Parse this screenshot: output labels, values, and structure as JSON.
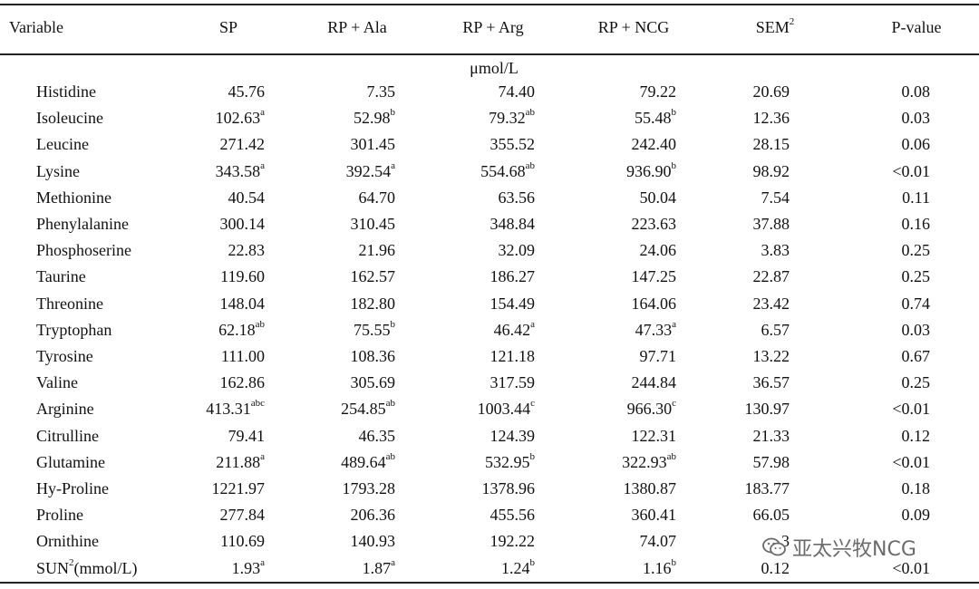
{
  "table": {
    "headers": {
      "variable": "Variable",
      "sp": "SP",
      "ala": "RP + Ala",
      "arg": "RP + Arg",
      "ncg": "RP + NCG",
      "sem": "SEM",
      "sem_sup": "2",
      "p": "P-value"
    },
    "unit": "μmol/L",
    "rows": [
      {
        "name": "Histidine",
        "sp": "45.76",
        "sp_s": "",
        "ala": "7.35",
        "ala_s": "",
        "arg": "74.40",
        "arg_s": "",
        "ncg": "79.22",
        "ncg_s": "",
        "sem": "20.69",
        "p": "0.08"
      },
      {
        "name": "Isoleucine",
        "sp": "102.63",
        "sp_s": "a",
        "ala": "52.98",
        "ala_s": "b",
        "arg": "79.32",
        "arg_s": "ab",
        "ncg": "55.48",
        "ncg_s": "b",
        "sem": "12.36",
        "p": "0.03"
      },
      {
        "name": "Leucine",
        "sp": "271.42",
        "sp_s": "",
        "ala": "301.45",
        "ala_s": "",
        "arg": "355.52",
        "arg_s": "",
        "ncg": "242.40",
        "ncg_s": "",
        "sem": "28.15",
        "p": "0.06"
      },
      {
        "name": "Lysine",
        "sp": "343.58",
        "sp_s": "a",
        "ala": "392.54",
        "ala_s": "a",
        "arg": "554.68",
        "arg_s": "ab",
        "ncg": "936.90",
        "ncg_s": "b",
        "sem": "98.92",
        "p": "<0.01"
      },
      {
        "name": "Methionine",
        "sp": "40.54",
        "sp_s": "",
        "ala": "64.70",
        "ala_s": "",
        "arg": "63.56",
        "arg_s": "",
        "ncg": "50.04",
        "ncg_s": "",
        "sem": "7.54",
        "p": "0.11"
      },
      {
        "name": "Phenylalanine",
        "sp": "300.14",
        "sp_s": "",
        "ala": "310.45",
        "ala_s": "",
        "arg": "348.84",
        "arg_s": "",
        "ncg": "223.63",
        "ncg_s": "",
        "sem": "37.88",
        "p": "0.16"
      },
      {
        "name": "Phosphoserine",
        "sp": "22.83",
        "sp_s": "",
        "ala": "21.96",
        "ala_s": "",
        "arg": "32.09",
        "arg_s": "",
        "ncg": "24.06",
        "ncg_s": "",
        "sem": "3.83",
        "p": "0.25"
      },
      {
        "name": "Taurine",
        "sp": "119.60",
        "sp_s": "",
        "ala": "162.57",
        "ala_s": "",
        "arg": "186.27",
        "arg_s": "",
        "ncg": "147.25",
        "ncg_s": "",
        "sem": "22.87",
        "p": "0.25"
      },
      {
        "name": "Threonine",
        "sp": "148.04",
        "sp_s": "",
        "ala": "182.80",
        "ala_s": "",
        "arg": "154.49",
        "arg_s": "",
        "ncg": "164.06",
        "ncg_s": "",
        "sem": "23.42",
        "p": "0.74"
      },
      {
        "name": "Tryptophan",
        "sp": "62.18",
        "sp_s": "ab",
        "ala": "75.55",
        "ala_s": "b",
        "arg": "46.42",
        "arg_s": "a",
        "ncg": "47.33",
        "ncg_s": "a",
        "sem": "6.57",
        "p": "0.03"
      },
      {
        "name": "Tyrosine",
        "sp": "111.00",
        "sp_s": "",
        "ala": "108.36",
        "ala_s": "",
        "arg": "121.18",
        "arg_s": "",
        "ncg": "97.71",
        "ncg_s": "",
        "sem": "13.22",
        "p": "0.67"
      },
      {
        "name": "Valine",
        "sp": "162.86",
        "sp_s": "",
        "ala": "305.69",
        "ala_s": "",
        "arg": "317.59",
        "arg_s": "",
        "ncg": "244.84",
        "ncg_s": "",
        "sem": "36.57",
        "p": "0.25"
      },
      {
        "name": "Arginine",
        "sp": "413.31",
        "sp_s": "abc",
        "ala": "254.85",
        "ala_s": "ab",
        "arg": "1003.44",
        "arg_s": "c",
        "ncg": "966.30",
        "ncg_s": "c",
        "sem": "130.97",
        "p": "<0.01"
      },
      {
        "name": "Citrulline",
        "sp": "79.41",
        "sp_s": "",
        "ala": "46.35",
        "ala_s": "",
        "arg": "124.39",
        "arg_s": "",
        "ncg": "122.31",
        "ncg_s": "",
        "sem": "21.33",
        "p": "0.12"
      },
      {
        "name": "Glutamine",
        "sp": "211.88",
        "sp_s": "a",
        "ala": "489.64",
        "ala_s": "ab",
        "arg": "532.95",
        "arg_s": "b",
        "ncg": "322.93",
        "ncg_s": "ab",
        "sem": "57.98",
        "p": "<0.01"
      },
      {
        "name": "Hy-Proline",
        "sp": "1221.97",
        "sp_s": "",
        "ala": "1793.28",
        "ala_s": "",
        "arg": "1378.96",
        "arg_s": "",
        "ncg": "1380.87",
        "ncg_s": "",
        "sem": "183.77",
        "p": "0.18"
      },
      {
        "name": "Proline",
        "sp": "277.84",
        "sp_s": "",
        "ala": "206.36",
        "ala_s": "",
        "arg": "455.56",
        "arg_s": "",
        "ncg": "360.41",
        "ncg_s": "",
        "sem": "66.05",
        "p": "0.09"
      },
      {
        "name": "Ornithine",
        "sp": "110.69",
        "sp_s": "",
        "ala": "140.93",
        "ala_s": "",
        "arg": "192.22",
        "arg_s": "",
        "ncg": "74.07",
        "ncg_s": "",
        "sem": "3",
        "p": ""
      },
      {
        "name": "SUN",
        "name_sup": "2",
        "name_suffix": "(mmol/L)",
        "sp": "1.93",
        "sp_s": "a",
        "ala": "1.87",
        "ala_s": "a",
        "arg": "1.24",
        "arg_s": "b",
        "ncg": "1.16",
        "ncg_s": "b",
        "sem": "0.12",
        "p": "<0.01"
      }
    ]
  },
  "watermark": {
    "text": "亚太兴牧NCG",
    "icon": "wechat-icon"
  }
}
